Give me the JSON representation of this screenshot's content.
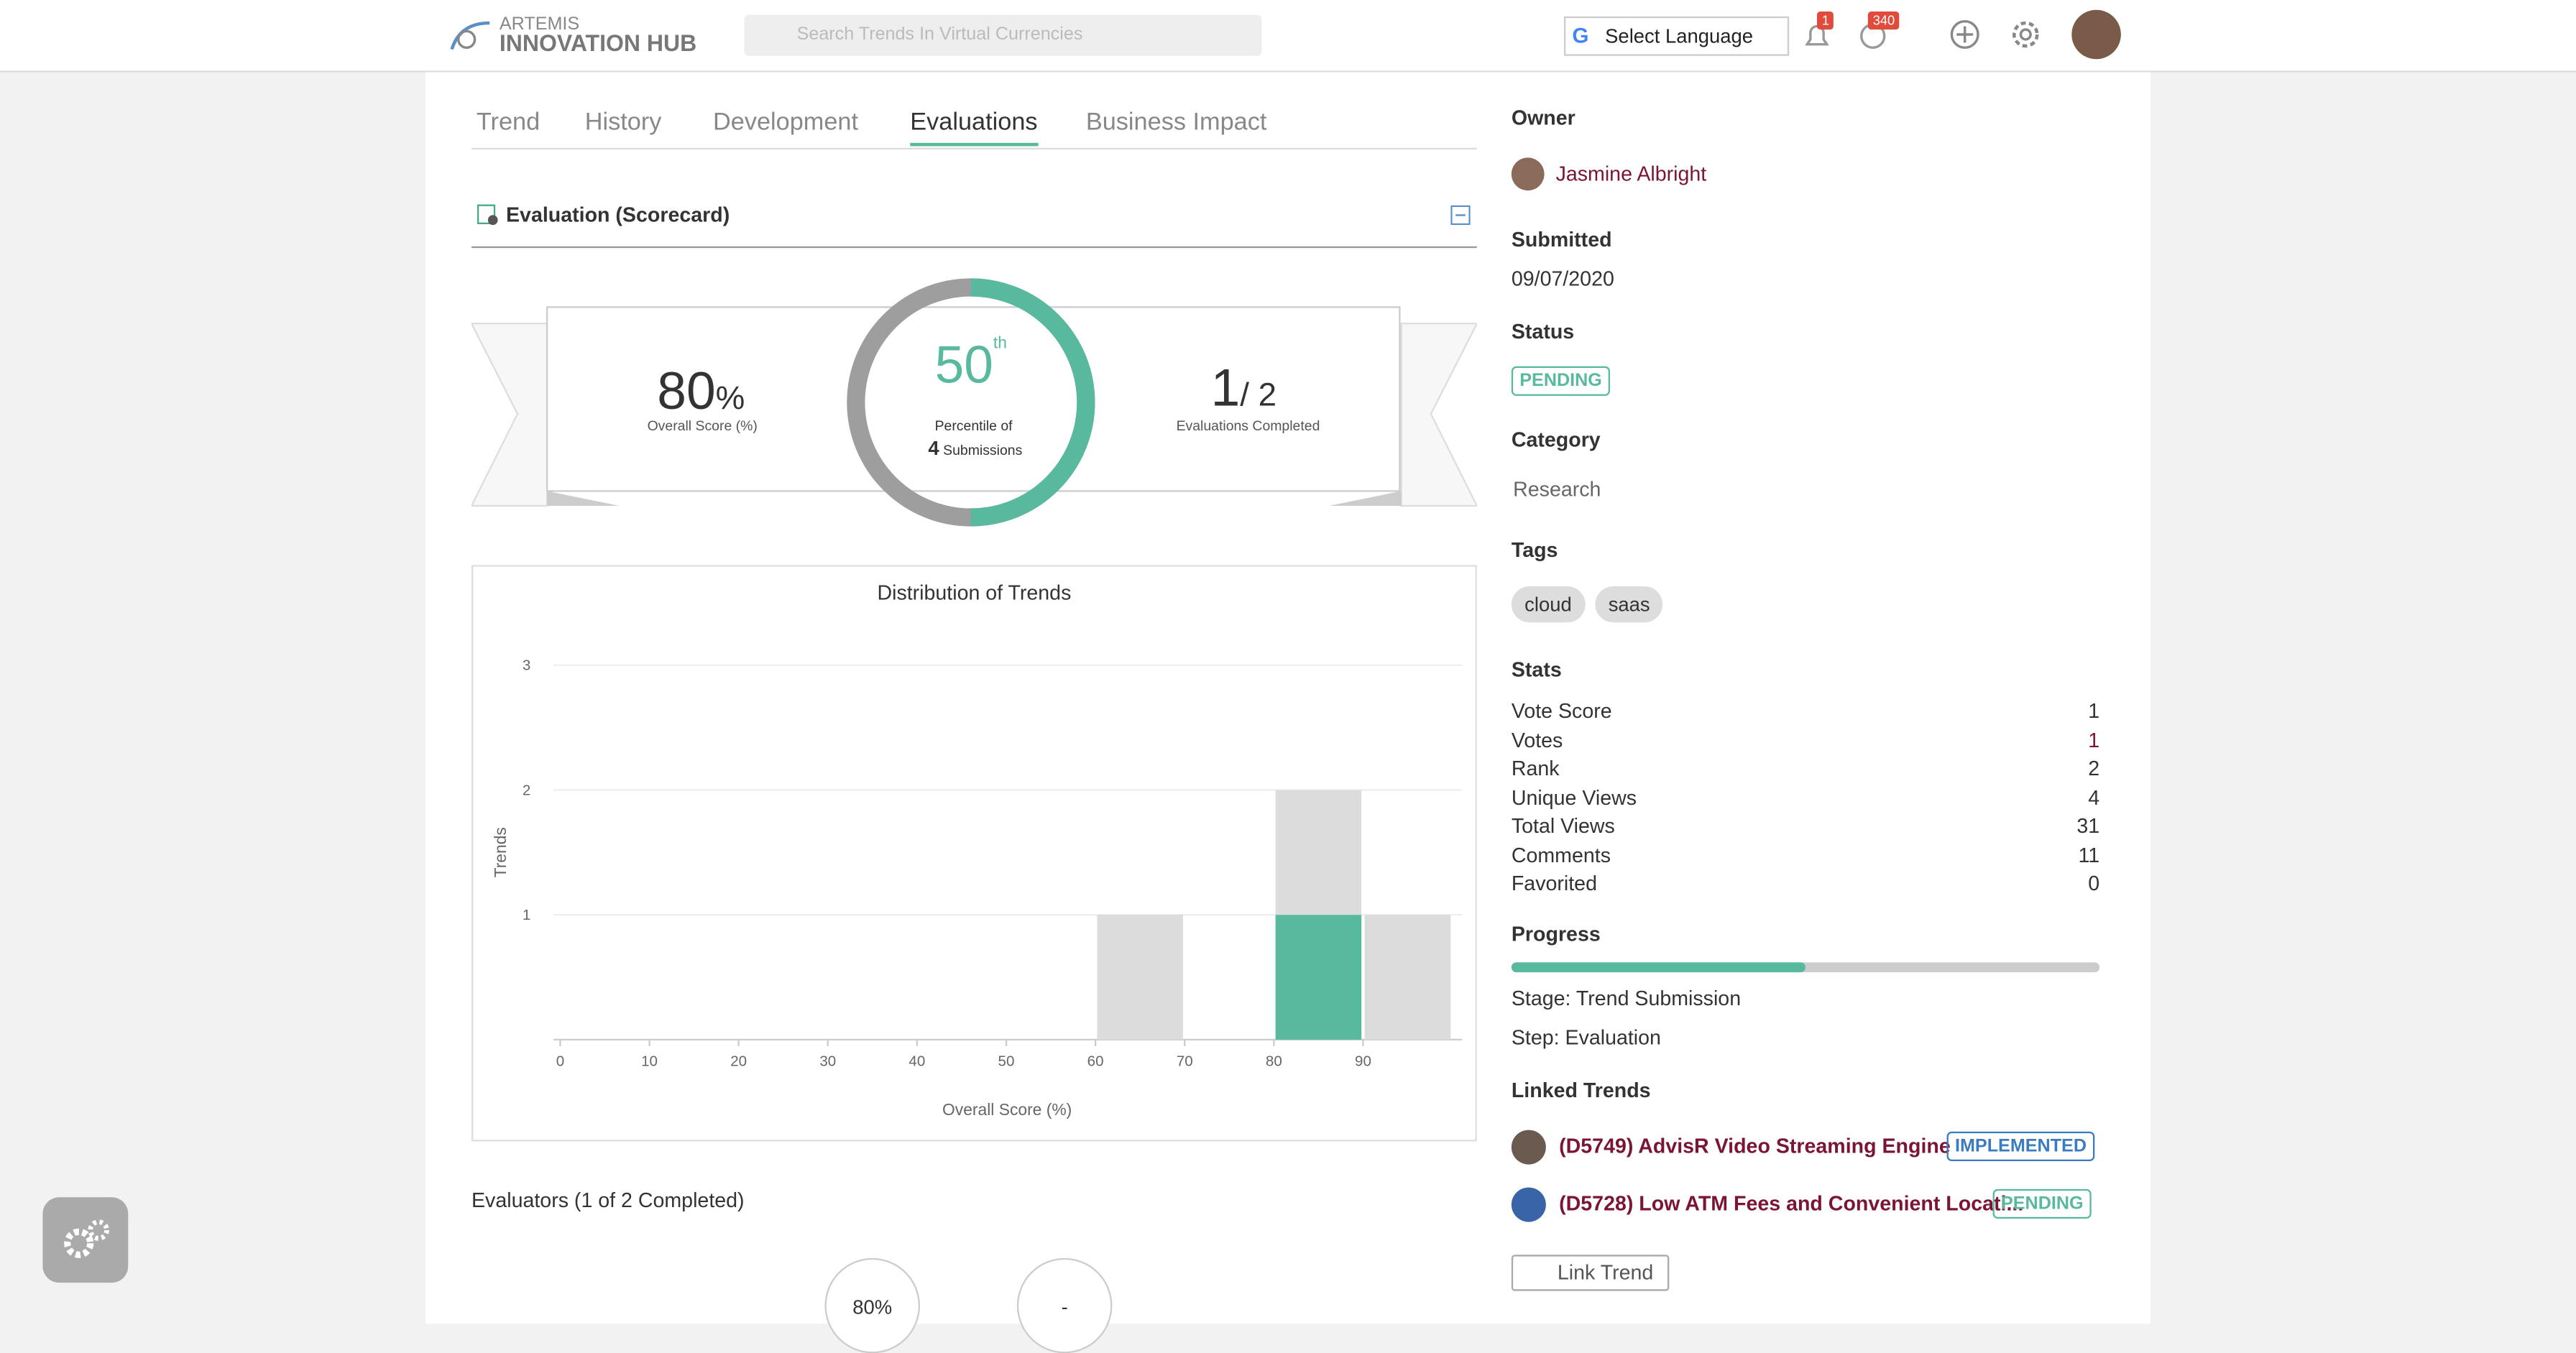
{
  "header": {
    "logo_top": "ARTEMIS",
    "logo_bottom": "INNOVATION HUB",
    "search_placeholder": "Search Trends In Virtual Currencies",
    "language": "Select Language",
    "notifications": "1",
    "activity": "340"
  },
  "tabs": [
    "Trend",
    "History",
    "Development",
    "Evaluations",
    "Business Impact"
  ],
  "active_tab": 3,
  "scorecard": {
    "title": "Evaluation (Scorecard)",
    "overall_score": "80",
    "overall_unit": "%",
    "overall_label": "Overall Score (%)",
    "percentile": 50,
    "percentile_suffix": "th",
    "percentile_label": "Percentile of",
    "submissions": "4",
    "submissions_label": "Submissions",
    "evaluations_done": "1",
    "evaluations_total": "/ 2",
    "evaluations_label": "Evaluations Completed"
  },
  "chart_data": {
    "type": "histogram",
    "title": "Distribution of Trends",
    "x_label": "Overall Score (%)",
    "y_label": "Trends",
    "bins": [
      0,
      10,
      20,
      30,
      40,
      50,
      60,
      70,
      80,
      90,
      100
    ],
    "series": [
      {
        "color": "#58b99f",
        "values": [
          0,
          0,
          0,
          0,
          0,
          0,
          0,
          0,
          1,
          0
        ]
      },
      {
        "color": "#dcdcdc",
        "values": [
          0,
          0,
          0,
          0,
          0,
          0,
          1,
          0,
          1,
          1
        ]
      }
    ],
    "xlim": [
      0,
      100
    ],
    "xticks": [
      0,
      10,
      20,
      30,
      40,
      50,
      60,
      70,
      80,
      90
    ],
    "ylim": [
      0,
      3
    ],
    "yticks": [
      1,
      2,
      3
    ],
    "grid": true
  },
  "evaluators": {
    "title": "Evaluators (1 of 2 Completed)",
    "items": [
      "80%",
      "-"
    ]
  },
  "sidebar": {
    "owner_label": "Owner",
    "owner": "Jasmine Albright",
    "submitted_label": "Submitted",
    "submitted": "09/07/2020",
    "status_label": "Status",
    "status": "PENDING",
    "category_label": "Category",
    "category": "Research",
    "tags_label": "Tags",
    "tags": [
      "cloud",
      "saas"
    ],
    "stats_label": "Stats",
    "stats": [
      [
        "Vote Score",
        "1"
      ],
      [
        "Votes",
        "1"
      ],
      [
        "Rank",
        "2"
      ],
      [
        "Unique Views",
        "4"
      ],
      [
        "Total Views",
        "31"
      ],
      [
        "Comments",
        "11"
      ],
      [
        "Favorited",
        "0"
      ]
    ],
    "progress_label": "Progress",
    "progress": 50,
    "stage": "Stage: Trend Submission",
    "step": "Step: Evaluation",
    "linked_label": "Linked Trends",
    "linked": [
      {
        "title": "(D5749) AdvisR Video Streaming Engine",
        "status": "IMPLEMENTED"
      },
      {
        "title": "(D5728) Low ATM Fees and Convenient Locati...",
        "status": "PENDING"
      }
    ],
    "link_button": "Link Trend"
  }
}
